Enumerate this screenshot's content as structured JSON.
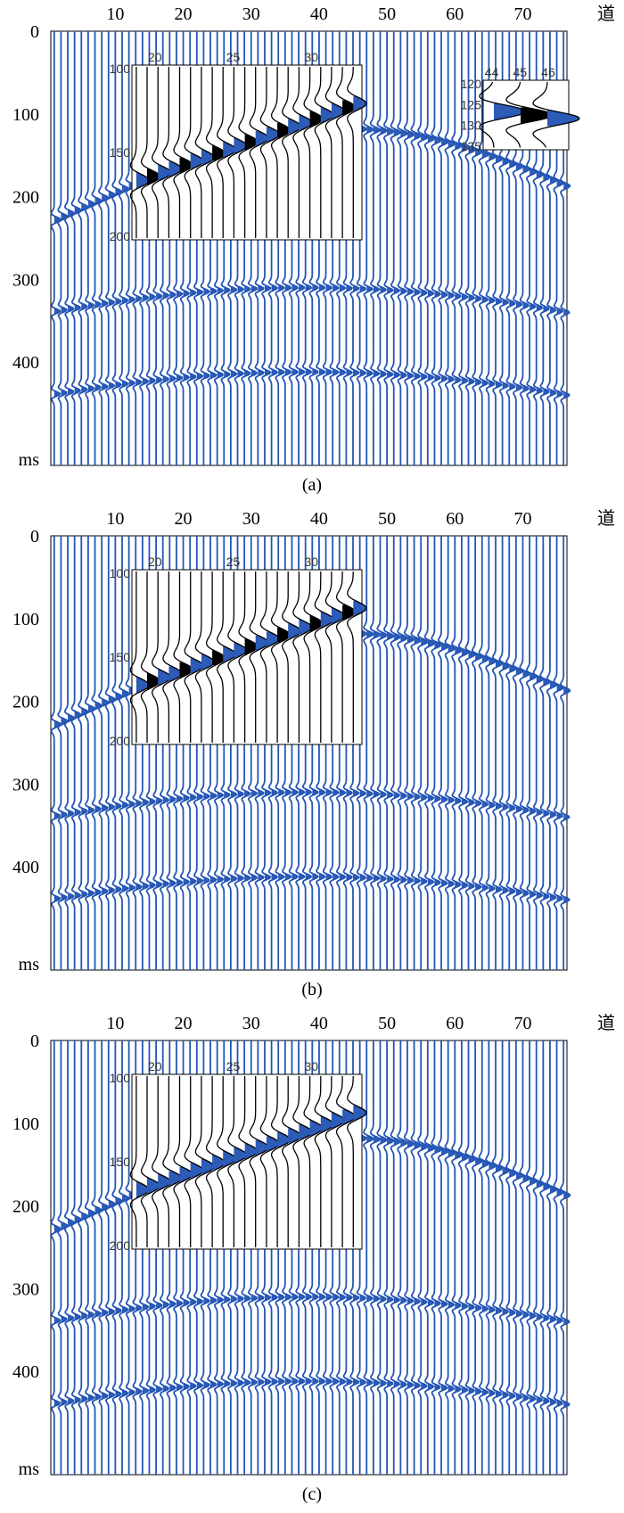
{
  "figure": {
    "trace_color": "#2455b5",
    "fill_color": "#2c5bb8",
    "strong_fill_color": "#000000"
  },
  "panels": [
    {
      "caption": "(a)",
      "x_unit": "道",
      "y_unit": "ms",
      "x_ticks": [
        "10",
        "20",
        "30",
        "40",
        "50",
        "60",
        "70"
      ],
      "y_ticks": [
        "0",
        "100",
        "200",
        "300",
        "400"
      ],
      "insets": [
        {
          "x_ticks": [
            "20",
            "25",
            "30"
          ],
          "y_ticks": [
            "100",
            "150",
            "200"
          ]
        },
        {
          "x_ticks": [
            "44",
            "45",
            "46"
          ],
          "y_ticks": [
            "120",
            "125",
            "130",
            "135"
          ]
        }
      ]
    },
    {
      "caption": "(b)",
      "x_unit": "道",
      "y_unit": "ms",
      "x_ticks": [
        "10",
        "20",
        "30",
        "40",
        "50",
        "60",
        "70"
      ],
      "y_ticks": [
        "0",
        "100",
        "200",
        "300",
        "400"
      ],
      "insets": [
        {
          "x_ticks": [
            "20",
            "25",
            "30"
          ],
          "y_ticks": [
            "100",
            "150",
            "200"
          ]
        }
      ]
    },
    {
      "caption": "(c)",
      "x_unit": "道",
      "y_unit": "ms",
      "x_ticks": [
        "10",
        "20",
        "30",
        "40",
        "50",
        "60",
        "70"
      ],
      "y_ticks": [
        "0",
        "100",
        "200",
        "300",
        "400"
      ],
      "insets": [
        {
          "x_ticks": [
            "20",
            "25",
            "30"
          ],
          "y_ticks": [
            "100",
            "150",
            "200"
          ]
        }
      ]
    }
  ],
  "chart_data": [
    {
      "type": "wiggle",
      "trace_range": [
        1,
        76
      ],
      "time_range_ms": [
        0,
        525
      ],
      "events": [
        {
          "kind": "hyperbola",
          "apex_trace": 44,
          "apex_time_ms": 118,
          "edge_time_ms": 228
        },
        {
          "kind": "hyperbola",
          "apex_trace": 38,
          "apex_time_ms": 310,
          "edge_time_ms": 340
        },
        {
          "kind": "hyperbola",
          "apex_trace": 38,
          "apex_time_ms": 412,
          "edge_time_ms": 440
        }
      ]
    },
    {
      "type": "wiggle",
      "trace_range": [
        1,
        76
      ],
      "time_range_ms": [
        0,
        525
      ],
      "events": [
        {
          "kind": "hyperbola",
          "apex_trace": 44,
          "apex_time_ms": 118,
          "edge_time_ms": 228
        },
        {
          "kind": "hyperbola",
          "apex_trace": 38,
          "apex_time_ms": 310,
          "edge_time_ms": 340
        },
        {
          "kind": "hyperbola",
          "apex_trace": 38,
          "apex_time_ms": 412,
          "edge_time_ms": 440
        }
      ]
    },
    {
      "type": "wiggle",
      "trace_range": [
        1,
        76
      ],
      "time_range_ms": [
        0,
        525
      ],
      "events": [
        {
          "kind": "hyperbola",
          "apex_trace": 44,
          "apex_time_ms": 118,
          "edge_time_ms": 228
        },
        {
          "kind": "hyperbola",
          "apex_trace": 38,
          "apex_time_ms": 310,
          "edge_time_ms": 340
        },
        {
          "kind": "hyperbola",
          "apex_trace": 38,
          "apex_time_ms": 412,
          "edge_time_ms": 440
        }
      ]
    }
  ]
}
